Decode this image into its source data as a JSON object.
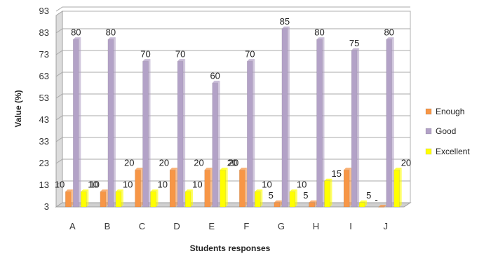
{
  "chart_data": {
    "type": "bar",
    "xlabel": "Students responses",
    "ylabel": "Value (%)",
    "categories": [
      "A",
      "B",
      "C",
      "D",
      "E",
      "F",
      "G",
      "H",
      "I",
      "J"
    ],
    "series": [
      {
        "name": "Enough",
        "color": "#f79646",
        "values": [
          10,
          10,
          20,
          20,
          20,
          20,
          5,
          5,
          20,
          3
        ],
        "labels": [
          "10",
          "10",
          "20",
          "20",
          "20",
          "20",
          "5",
          "5",
          "",
          "-"
        ]
      },
      {
        "name": "Good",
        "color": "#b3a2c7",
        "values": [
          80,
          80,
          70,
          70,
          60,
          70,
          85,
          80,
          75,
          80
        ],
        "labels": [
          "80",
          "80",
          "70",
          "70",
          "60",
          "70",
          "85",
          "80",
          "75",
          "80"
        ]
      },
      {
        "name": "Excellent",
        "color": "#ffff00",
        "values": [
          10,
          10,
          10,
          10,
          20,
          10,
          10,
          15,
          5,
          20
        ],
        "labels": [
          "10",
          "10",
          "10",
          "10",
          "20",
          "10",
          "10",
          "15",
          "5",
          "20"
        ]
      }
    ],
    "ylim": [
      3,
      93
    ],
    "yticks": [
      3,
      13,
      23,
      33,
      43,
      53,
      63,
      73,
      83,
      93
    ],
    "grid": true,
    "legend_position": "right"
  }
}
